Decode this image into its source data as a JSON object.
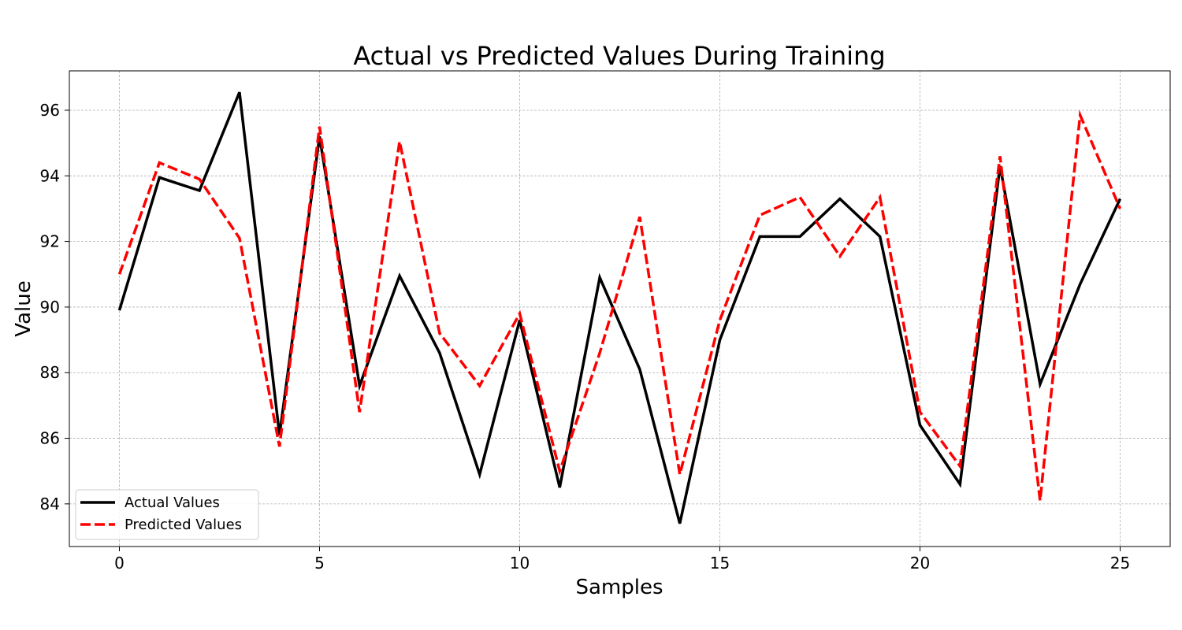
{
  "chart_data": {
    "type": "line",
    "title": "Actual vs Predicted Values During Training",
    "xlabel": "Samples",
    "ylabel": "Value",
    "x": [
      0,
      1,
      2,
      3,
      4,
      5,
      6,
      7,
      8,
      9,
      10,
      11,
      12,
      13,
      14,
      15,
      16,
      17,
      18,
      19,
      20,
      21,
      22,
      23,
      24,
      25
    ],
    "xlim": [
      -1.25,
      26.25
    ],
    "ylim": [
      82.7,
      97.2
    ],
    "xticks": [
      0,
      5,
      10,
      15,
      20,
      25
    ],
    "yticks": [
      84,
      86,
      88,
      90,
      92,
      94,
      96
    ],
    "grid": true,
    "legend_position": "lower-left",
    "series": [
      {
        "name": "Actual Values",
        "color": "#000000",
        "style": "solid",
        "values": [
          89.9,
          93.95,
          93.55,
          96.55,
          86.1,
          95.2,
          87.6,
          90.95,
          88.6,
          84.9,
          89.6,
          84.5,
          90.9,
          88.1,
          83.4,
          89.0,
          92.15,
          92.15,
          93.3,
          92.15,
          86.4,
          84.6,
          94.3,
          87.65,
          90.7,
          93.3
        ]
      },
      {
        "name": "Predicted Values",
        "color": "#ff0000",
        "style": "dashed",
        "values": [
          91.0,
          94.4,
          93.9,
          92.1,
          85.75,
          95.5,
          86.8,
          95.05,
          89.2,
          87.6,
          89.8,
          85.0,
          88.6,
          92.75,
          84.9,
          89.6,
          92.8,
          93.35,
          91.55,
          93.35,
          86.8,
          85.15,
          94.6,
          84.1,
          95.85,
          93.0
        ]
      }
    ]
  }
}
